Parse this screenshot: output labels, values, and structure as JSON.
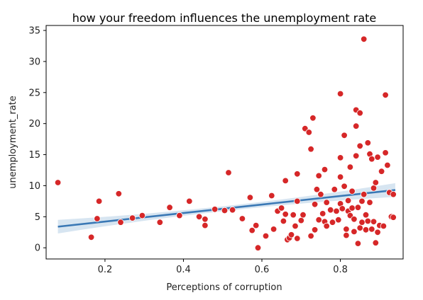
{
  "chart_data": {
    "type": "scatter",
    "title": "how your freedom influences the unemployment rate",
    "xlabel": "Perceptions of corruption",
    "ylabel": "unemployment_rate",
    "xlim": [
      0.05,
      0.96
    ],
    "ylim": [
      -1.8,
      35.8
    ],
    "xticks": [
      0.2,
      0.4,
      0.6,
      0.8
    ],
    "xtick_labels": [
      "0.2",
      "0.4",
      "0.6",
      "0.8"
    ],
    "yticks": [
      0,
      5,
      10,
      15,
      20,
      25,
      30,
      35
    ],
    "ytick_labels": [
      "0",
      "5",
      "10",
      "15",
      "20",
      "25",
      "30",
      "35"
    ],
    "grid": false,
    "colors": {
      "points": "#d62728",
      "regression_line": "#3a78b5",
      "ci_band": "#bcd3e8"
    },
    "regression": {
      "x": [
        0.08,
        0.94
      ],
      "y": [
        3.4,
        9.3
      ],
      "ci_halfwidth_ends": 1.1,
      "ci_halfwidth_center": 0.4
    },
    "points": [
      [
        0.08,
        10.5
      ],
      [
        0.165,
        1.7
      ],
      [
        0.18,
        4.7
      ],
      [
        0.185,
        7.5
      ],
      [
        0.235,
        8.7
      ],
      [
        0.24,
        4.1
      ],
      [
        0.27,
        4.8
      ],
      [
        0.295,
        5.2
      ],
      [
        0.34,
        4.1
      ],
      [
        0.365,
        6.5
      ],
      [
        0.39,
        5.2
      ],
      [
        0.415,
        7.5
      ],
      [
        0.44,
        5.0
      ],
      [
        0.455,
        4.6
      ],
      [
        0.455,
        3.6
      ],
      [
        0.48,
        6.2
      ],
      [
        0.505,
        6.0
      ],
      [
        0.515,
        12.1
      ],
      [
        0.525,
        6.1
      ],
      [
        0.55,
        4.7
      ],
      [
        0.57,
        8.1
      ],
      [
        0.575,
        2.8
      ],
      [
        0.585,
        3.6
      ],
      [
        0.59,
        0.0
      ],
      [
        0.61,
        1.9
      ],
      [
        0.625,
        8.4
      ],
      [
        0.63,
        3.0
      ],
      [
        0.64,
        5.9
      ],
      [
        0.65,
        6.4
      ],
      [
        0.655,
        4.3
      ],
      [
        0.66,
        5.4
      ],
      [
        0.66,
        10.8
      ],
      [
        0.665,
        1.3
      ],
      [
        0.67,
        1.6
      ],
      [
        0.675,
        2.1
      ],
      [
        0.68,
        5.3
      ],
      [
        0.685,
        3.5
      ],
      [
        0.69,
        7.5
      ],
      [
        0.69,
        11.9
      ],
      [
        0.69,
        1.5
      ],
      [
        0.7,
        4.4
      ],
      [
        0.705,
        5.3
      ],
      [
        0.71,
        19.2
      ],
      [
        0.72,
        18.6
      ],
      [
        0.725,
        15.9
      ],
      [
        0.725,
        1.9
      ],
      [
        0.73,
        20.9
      ],
      [
        0.735,
        2.9
      ],
      [
        0.735,
        7.0
      ],
      [
        0.74,
        9.4
      ],
      [
        0.745,
        4.5
      ],
      [
        0.745,
        11.6
      ],
      [
        0.75,
        8.6
      ],
      [
        0.755,
        5.5
      ],
      [
        0.76,
        12.6
      ],
      [
        0.76,
        4.2
      ],
      [
        0.765,
        3.5
      ],
      [
        0.765,
        7.3
      ],
      [
        0.775,
        6.1
      ],
      [
        0.78,
        4.1
      ],
      [
        0.785,
        9.4
      ],
      [
        0.79,
        5.9
      ],
      [
        0.795,
        4.5
      ],
      [
        0.8,
        24.8
      ],
      [
        0.8,
        7.1
      ],
      [
        0.8,
        11.4
      ],
      [
        0.8,
        14.5
      ],
      [
        0.805,
        6.3
      ],
      [
        0.81,
        18.1
      ],
      [
        0.81,
        9.9
      ],
      [
        0.815,
        3.0
      ],
      [
        0.815,
        2.0
      ],
      [
        0.82,
        5.9
      ],
      [
        0.82,
        7.6
      ],
      [
        0.825,
        5.2
      ],
      [
        0.825,
        13.0
      ],
      [
        0.83,
        6.4
      ],
      [
        0.83,
        9.1
      ],
      [
        0.835,
        2.6
      ],
      [
        0.835,
        4.6
      ],
      [
        0.84,
        19.6
      ],
      [
        0.84,
        22.2
      ],
      [
        0.84,
        14.8
      ],
      [
        0.845,
        6.5
      ],
      [
        0.845,
        0.7
      ],
      [
        0.85,
        21.7
      ],
      [
        0.85,
        16.4
      ],
      [
        0.85,
        3.2
      ],
      [
        0.855,
        7.5
      ],
      [
        0.855,
        4.1
      ],
      [
        0.86,
        33.6
      ],
      [
        0.86,
        8.6
      ],
      [
        0.865,
        5.3
      ],
      [
        0.865,
        2.9
      ],
      [
        0.87,
        16.9
      ],
      [
        0.87,
        4.3
      ],
      [
        0.875,
        7.3
      ],
      [
        0.875,
        15.1
      ],
      [
        0.88,
        14.3
      ],
      [
        0.88,
        3.0
      ],
      [
        0.885,
        9.6
      ],
      [
        0.885,
        4.2
      ],
      [
        0.89,
        10.5
      ],
      [
        0.89,
        0.8
      ],
      [
        0.895,
        2.5
      ],
      [
        0.895,
        14.6
      ],
      [
        0.9,
        3.6
      ],
      [
        0.905,
        12.3
      ],
      [
        0.91,
        3.5
      ],
      [
        0.915,
        24.6
      ],
      [
        0.915,
        15.3
      ],
      [
        0.92,
        13.3
      ],
      [
        0.925,
        8.9
      ],
      [
        0.93,
        5.0
      ],
      [
        0.935,
        8.6
      ],
      [
        0.935,
        4.9
      ]
    ]
  }
}
